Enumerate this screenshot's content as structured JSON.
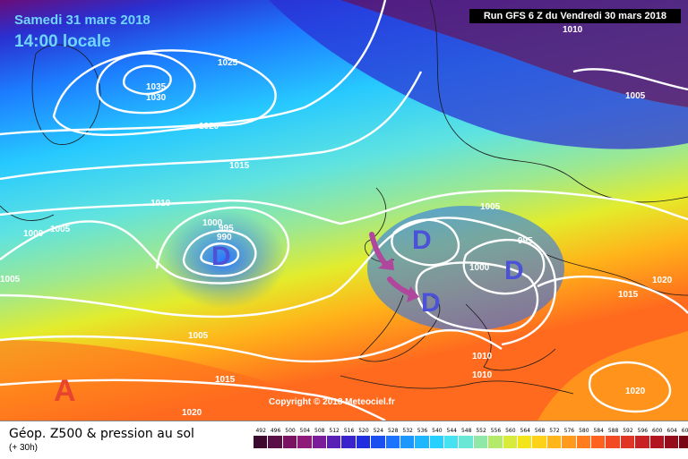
{
  "header": {
    "date": "Samedi 31 mars 2018",
    "time": "14:00 locale",
    "run": "Run GFS 6 Z du Vendredi 30 mars 2018"
  },
  "copyright": "Copyright © 2018 Meteociel.fr",
  "footer": {
    "title": "Géop. Z500 & pression au sol",
    "subtitle": "(+ 30h)"
  },
  "colors": {
    "cold_deep": "#8b0a7d",
    "arrow": "#b0479c",
    "low_letter": "#4b52d8",
    "high_letter": "#e8452f"
  },
  "pressure_labels": [
    "1010",
    "1025",
    "1035",
    "1030",
    "1020",
    "1015",
    "1010",
    "1005",
    "1000",
    "995",
    "990",
    "1000",
    "1005",
    "1005",
    "1000",
    "995",
    "1015",
    "1020",
    "1005",
    "1010",
    "1010",
    "1015",
    "1020",
    "1020",
    "1005"
  ],
  "systems": [
    {
      "type": "low",
      "label": "D"
    },
    {
      "type": "low",
      "label": "D"
    },
    {
      "type": "low",
      "label": "D"
    },
    {
      "type": "low",
      "label": "D"
    },
    {
      "type": "high",
      "label": "A"
    }
  ],
  "scale": {
    "labels": [
      "492",
      "496",
      "500",
      "504",
      "508",
      "512",
      "516",
      "520",
      "524",
      "528",
      "532",
      "536",
      "540",
      "544",
      "548",
      "552",
      "556",
      "560",
      "564",
      "568",
      "572",
      "576",
      "580",
      "584",
      "588",
      "592",
      "596",
      "600",
      "604",
      "608",
      "612"
    ],
    "colors": [
      "#3b0a2e",
      "#5a0f47",
      "#7a1462",
      "#8e1a7a",
      "#7b1c9a",
      "#5a1fb4",
      "#3a22cc",
      "#1f2fe0",
      "#1c4ff0",
      "#1c73ff",
      "#1c97ff",
      "#1cb7ff",
      "#27d1ff",
      "#46e2f2",
      "#6be8d5",
      "#8fe8a6",
      "#b3ea6a",
      "#d7ec3a",
      "#f2e61b",
      "#ffd21a",
      "#ffb61a",
      "#ff9a1c",
      "#ff7d1e",
      "#ff611f",
      "#f24a22",
      "#e03424",
      "#c92225",
      "#b21520",
      "#950c1a",
      "#780713",
      "#5a040d"
    ]
  }
}
